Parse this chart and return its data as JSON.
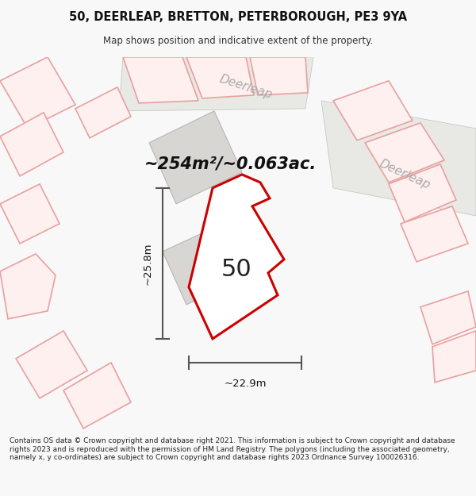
{
  "title_line1": "50, DEERLEAP, BRETTON, PETERBOROUGH, PE3 9YA",
  "title_line2": "Map shows position and indicative extent of the property.",
  "area_text": "~254m²/~0.063ac.",
  "label_50": "50",
  "dim_width": "~22.9m",
  "dim_height": "~25.8m",
  "footer_text": "Contains OS data © Crown copyright and database right 2021. This information is subject to Crown copyright and database rights 2023 and is reproduced with the permission of HM Land Registry. The polygons (including the associated geometry, namely x, y co-ordinates) are subject to Crown copyright and database rights 2023 Ordnance Survey 100026316.",
  "map_bg": "#ffffff",
  "page_bg": "#f8f8f8",
  "road_label1": "Deerleap",
  "road_label2": "Deerleap",
  "main_plot_color": "#cc0000",
  "pink_outline_color": "#e8a0a0",
  "gray_fill_color": "#d8d6d2",
  "gray_stroke_color": "#b8b6b2",
  "road_text_color": "#aaaaaa",
  "dim_line_color": "#555555"
}
